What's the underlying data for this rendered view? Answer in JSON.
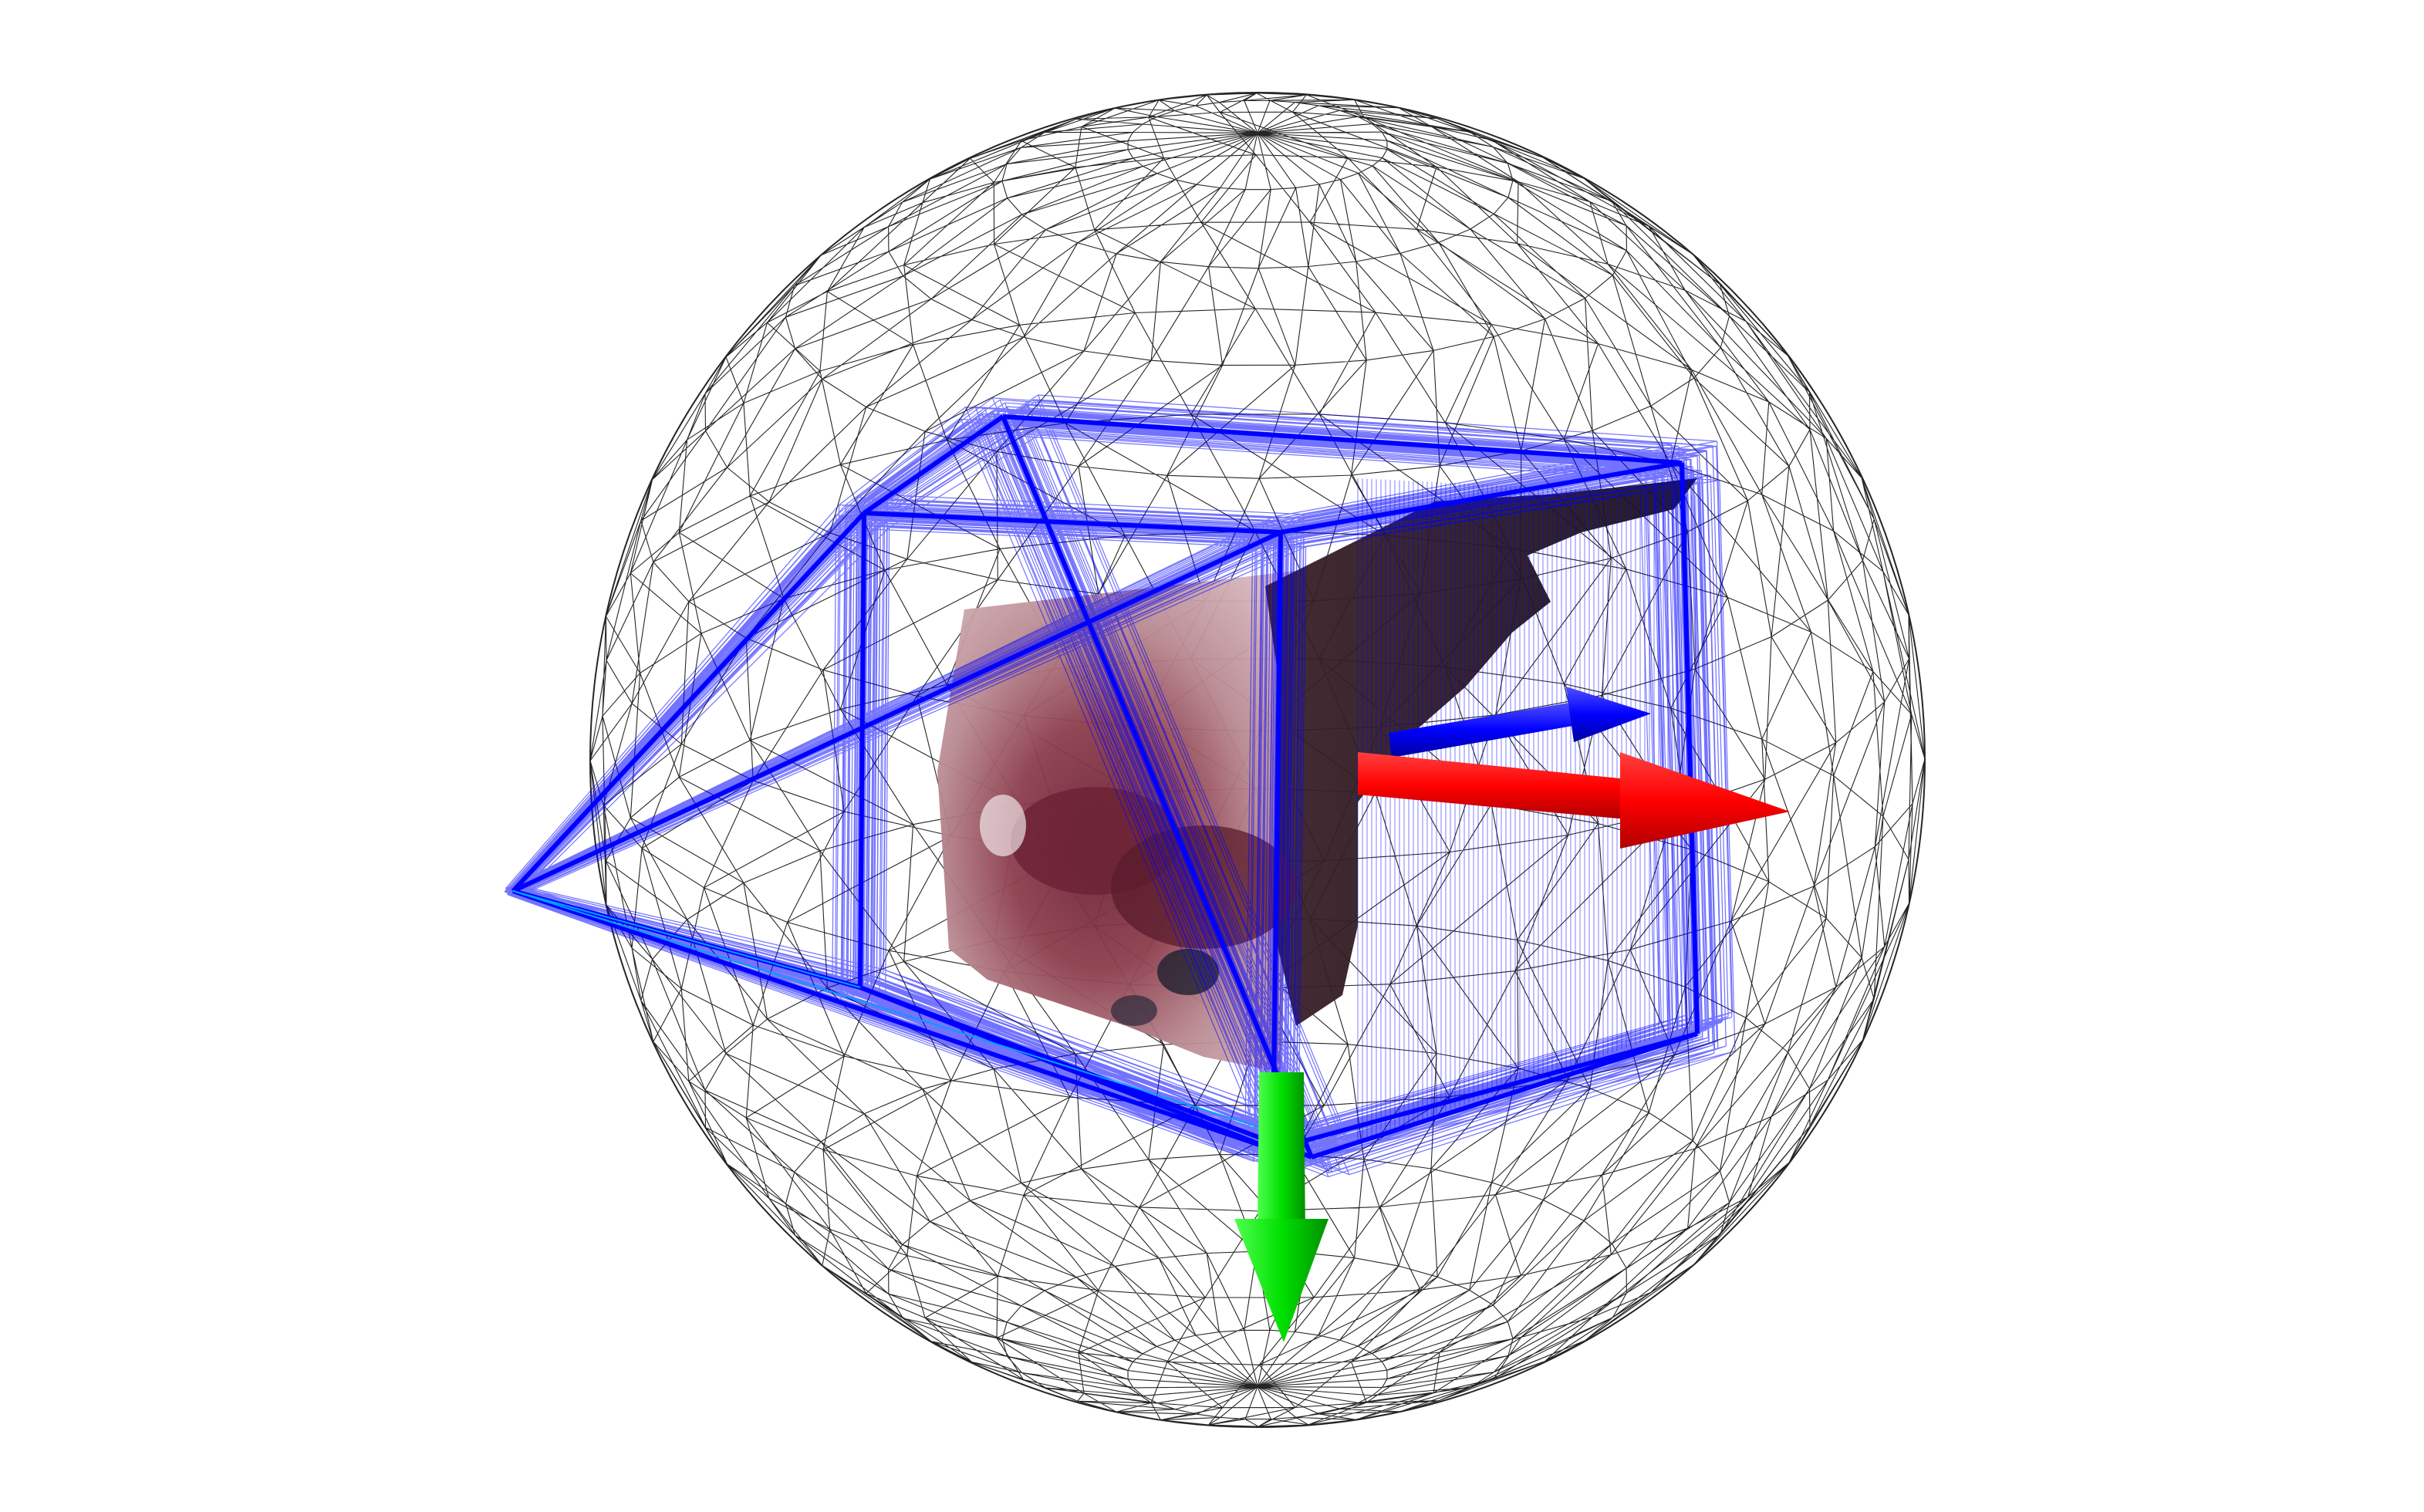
{
  "scene": {
    "background_color": "#ffffff",
    "wireframe_sphere_color": "#000000",
    "camera_frustum_color": "#0000ff",
    "camera_frustum_highlight_color": "#00a0ff",
    "axis_x_color": "#ff0000",
    "axis_y_color": "#00e000",
    "axis_z_color": "#0000ff",
    "point_cloud_colors": [
      "#b98a92",
      "#8c3d4c",
      "#6b2234",
      "#2a1a22",
      "#d7b8be"
    ]
  },
  "elements": {
    "sphere_icon": "wireframe-sphere-icon",
    "frustum_icon": "camera-frustum-icon",
    "cloud_icon": "point-cloud-icon",
    "axes_icon": "coordinate-axes-icon"
  }
}
